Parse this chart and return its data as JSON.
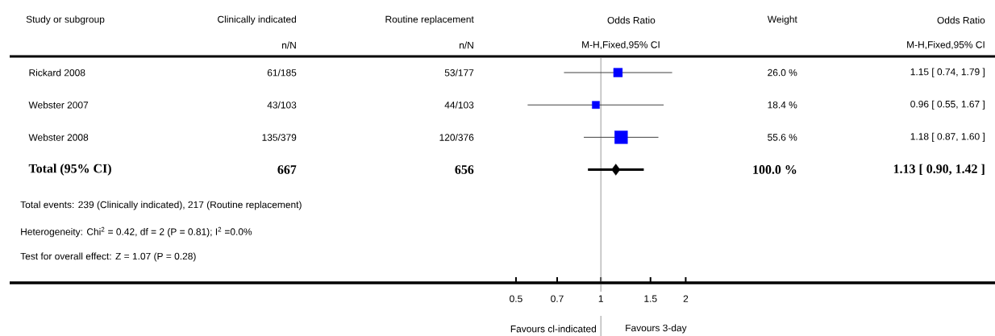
{
  "chart_data": {
    "type": "scatter",
    "orientation": "horizontal",
    "log": "x",
    "tick_labels": "x",
    "xlim": [
      0.008,
      25
    ],
    "xticks": [
      0.5,
      0.7,
      1,
      1.5,
      2
    ],
    "categories": [
      "Rickard 2008",
      "Webster 2007",
      "Webster 2008",
      "**Total (95% CI)**",
      null,
      null,
      null
    ],
    "series": [
      {
        "type": "bubble",
        "marker": "square",
        "color": "#0000ff",
        "values": [
          1.15,
          0.96,
          1.18,
          null,
          null,
          null,
          null
        ],
        "sizes": [
          0.47,
          0.33,
          1,
          null,
          null,
          null,
          null
        ],
        "errors": [
          [
            0.74,
            1.79
          ],
          [
            0.55,
            1.67
          ],
          [
            0.87,
            1.6
          ],
          null,
          null,
          null,
          null
        ]
      },
      {
        "marker": "diamond",
        "color": "#000000",
        "values": [
          null,
          null,
          null,
          1.13,
          null,
          null,
          null
        ],
        "errors": [
          null,
          null,
          null,
          [
            0.9,
            1.42
          ],
          null,
          null,
          null
        ]
      }
    ],
    "ref_lines": [
      {
        "axis": "x",
        "value": 1,
        "color": "#999999"
      }
    ],
    "annotations": [
      "Study or subgroup",
      "Clinically indicated",
      "n/N",
      "Routine replacement",
      "n/N",
      "Odds Ratio",
      "M-H,Fixed,95% CI",
      "Weight",
      "Odds Ratio",
      "M-H,Fixed,95% CI",
      "61/185",
      "53/177",
      "26.0 %",
      "1.15 [ 0.74, 1.79 ]",
      "43/103",
      "44/103",
      "18.4 %",
      "0.96 [ 0.55, 1.67 ]",
      "135/379",
      "120/376",
      "55.6 %",
      "1.18 [ 0.87, 1.60 ]",
      "**667**",
      "**656**",
      "**100.0 %**",
      "**1.13 [ 0.90, 1.42 ]**",
      "Total events: 239 (Clinically indicated), 217 (Routine replacement)",
      "Heterogeneity: Chi$^{2}$ = 0.42, df = 2 (P = 0.81); I$^{2}$ =0.0%",
      "Test for overall effect: Z = 1.07 (P = 0.28)",
      "Favours cl-indicated",
      "Favours 3-day"
    ]
  }
}
